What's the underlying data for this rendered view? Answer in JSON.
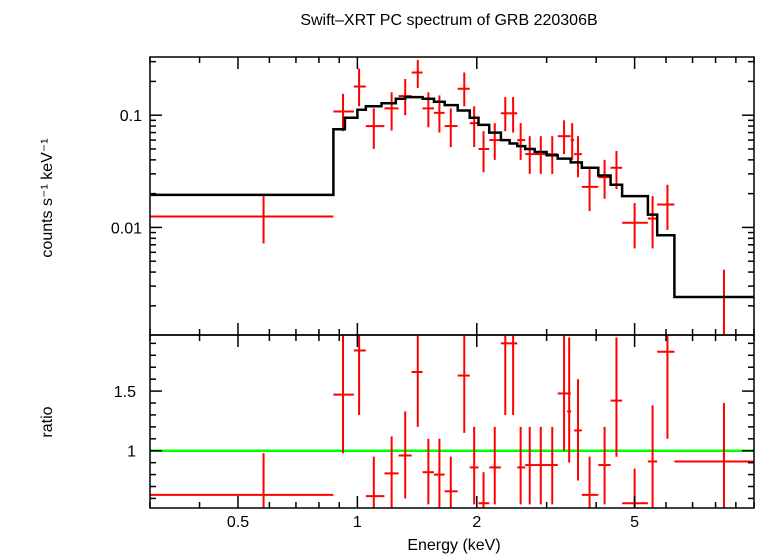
{
  "chart_data": {
    "type": "scatter",
    "title": "Swift–XRT PC spectrum of GRB 220306B",
    "xlabel": "Energy (keV)",
    "x_scale": "log",
    "xlim": [
      0.3,
      10
    ],
    "colors": {
      "data": "#ff0000",
      "model": "#000000",
      "unity": "#00ff00"
    },
    "top_panel": {
      "ylabel": "counts s⁻¹ keV⁻¹",
      "y_scale": "log",
      "ylim": [
        0.0011,
        0.33
      ],
      "yticks": [
        {
          "value": 0.01,
          "label": "0.01"
        },
        {
          "value": 0.1,
          "label": "0.1"
        }
      ],
      "data_points": [
        {
          "x": 0.58,
          "xlo": 0.3,
          "xhi": 0.87,
          "y": 0.0125,
          "ylo": 0.0072,
          "yhi": 0.019
        },
        {
          "x": 0.92,
          "xlo": 0.87,
          "xhi": 0.98,
          "y": 0.108,
          "ylo": 0.072,
          "yhi": 0.155
        },
        {
          "x": 1.01,
          "xlo": 0.98,
          "xhi": 1.05,
          "y": 0.18,
          "ylo": 0.12,
          "yhi": 0.26
        },
        {
          "x": 1.1,
          "xlo": 1.05,
          "xhi": 1.17,
          "y": 0.08,
          "ylo": 0.05,
          "yhi": 0.115
        },
        {
          "x": 1.22,
          "xlo": 1.17,
          "xhi": 1.27,
          "y": 0.115,
          "ylo": 0.073,
          "yhi": 0.16
        },
        {
          "x": 1.32,
          "xlo": 1.27,
          "xhi": 1.37,
          "y": 0.148,
          "ylo": 0.1,
          "yhi": 0.21
        },
        {
          "x": 1.42,
          "xlo": 1.37,
          "xhi": 1.46,
          "y": 0.24,
          "ylo": 0.175,
          "yhi": 0.31
        },
        {
          "x": 1.51,
          "xlo": 1.46,
          "xhi": 1.56,
          "y": 0.115,
          "ylo": 0.078,
          "yhi": 0.16
        },
        {
          "x": 1.61,
          "xlo": 1.56,
          "xhi": 1.66,
          "y": 0.105,
          "ylo": 0.07,
          "yhi": 0.15
        },
        {
          "x": 1.72,
          "xlo": 1.66,
          "xhi": 1.79,
          "y": 0.08,
          "ylo": 0.052,
          "yhi": 0.115
        },
        {
          "x": 1.86,
          "xlo": 1.79,
          "xhi": 1.92,
          "y": 0.172,
          "ylo": 0.12,
          "yhi": 0.24
        },
        {
          "x": 1.97,
          "xlo": 1.92,
          "xhi": 2.02,
          "y": 0.085,
          "ylo": 0.052,
          "yhi": 0.12
        },
        {
          "x": 2.08,
          "xlo": 2.02,
          "xhi": 2.15,
          "y": 0.05,
          "ylo": 0.031,
          "yhi": 0.072
        },
        {
          "x": 2.22,
          "xlo": 2.15,
          "xhi": 2.3,
          "y": 0.06,
          "ylo": 0.04,
          "yhi": 0.085
        },
        {
          "x": 2.36,
          "xlo": 2.3,
          "xhi": 2.42,
          "y": 0.104,
          "ylo": 0.072,
          "yhi": 0.145
        },
        {
          "x": 2.47,
          "xlo": 2.42,
          "xhi": 2.53,
          "y": 0.104,
          "ylo": 0.07,
          "yhi": 0.145
        },
        {
          "x": 2.58,
          "xlo": 2.53,
          "xhi": 2.65,
          "y": 0.06,
          "ylo": 0.04,
          "yhi": 0.085
        },
        {
          "x": 2.72,
          "xlo": 2.65,
          "xhi": 2.8,
          "y": 0.045,
          "ylo": 0.03,
          "yhi": 0.065
        },
        {
          "x": 2.9,
          "xlo": 2.8,
          "xhi": 3.0,
          "y": 0.045,
          "ylo": 0.03,
          "yhi": 0.065
        },
        {
          "x": 3.1,
          "xlo": 3.0,
          "xhi": 3.2,
          "y": 0.045,
          "ylo": 0.03,
          "yhi": 0.065
        },
        {
          "x": 3.32,
          "xlo": 3.2,
          "xhi": 3.45,
          "y": 0.065,
          "ylo": 0.045,
          "yhi": 0.09
        },
        {
          "x": 3.48,
          "xlo": 3.45,
          "xhi": 3.52,
          "y": 0.06,
          "ylo": 0.04,
          "yhi": 0.085
        },
        {
          "x": 3.6,
          "xlo": 3.52,
          "xhi": 3.68,
          "y": 0.045,
          "ylo": 0.028,
          "yhi": 0.065
        },
        {
          "x": 3.85,
          "xlo": 3.68,
          "xhi": 4.05,
          "y": 0.023,
          "ylo": 0.014,
          "yhi": 0.035
        },
        {
          "x": 4.2,
          "xlo": 4.05,
          "xhi": 4.35,
          "y": 0.028,
          "ylo": 0.018,
          "yhi": 0.04
        },
        {
          "x": 4.5,
          "xlo": 4.35,
          "xhi": 4.65,
          "y": 0.034,
          "ylo": 0.022,
          "yhi": 0.048
        },
        {
          "x": 5.0,
          "xlo": 4.65,
          "xhi": 5.4,
          "y": 0.011,
          "ylo": 0.0065,
          "yhi": 0.0165
        },
        {
          "x": 5.55,
          "xlo": 5.4,
          "xhi": 5.7,
          "y": 0.012,
          "ylo": 0.0065,
          "yhi": 0.019
        },
        {
          "x": 6.05,
          "xlo": 5.7,
          "xhi": 6.3,
          "y": 0.016,
          "ylo": 0.0095,
          "yhi": 0.024
        },
        {
          "x": 8.4,
          "xlo": 6.3,
          "xhi": 10.0,
          "y": 0.0024,
          "ylo": 0.0011,
          "yhi": 0.0042
        }
      ],
      "model_steps": [
        {
          "x0": 0.3,
          "x1": 0.87,
          "y": 0.0195
        },
        {
          "x0": 0.87,
          "x1": 0.93,
          "y": 0.075
        },
        {
          "x0": 0.93,
          "x1": 1.0,
          "y": 0.095
        },
        {
          "x0": 1.0,
          "x1": 1.05,
          "y": 0.112
        },
        {
          "x0": 1.05,
          "x1": 1.15,
          "y": 0.12
        },
        {
          "x0": 1.15,
          "x1": 1.25,
          "y": 0.128
        },
        {
          "x0": 1.25,
          "x1": 1.32,
          "y": 0.14
        },
        {
          "x0": 1.32,
          "x1": 1.46,
          "y": 0.145
        },
        {
          "x0": 1.46,
          "x1": 1.56,
          "y": 0.14
        },
        {
          "x0": 1.56,
          "x1": 1.66,
          "y": 0.132
        },
        {
          "x0": 1.66,
          "x1": 1.79,
          "y": 0.123
        },
        {
          "x0": 1.79,
          "x1": 1.92,
          "y": 0.11
        },
        {
          "x0": 1.92,
          "x1": 2.02,
          "y": 0.095
        },
        {
          "x0": 2.02,
          "x1": 2.15,
          "y": 0.082
        },
        {
          "x0": 2.15,
          "x1": 2.3,
          "y": 0.07
        },
        {
          "x0": 2.3,
          "x1": 2.42,
          "y": 0.06
        },
        {
          "x0": 2.42,
          "x1": 2.53,
          "y": 0.056
        },
        {
          "x0": 2.53,
          "x1": 2.65,
          "y": 0.053
        },
        {
          "x0": 2.65,
          "x1": 2.8,
          "y": 0.05
        },
        {
          "x0": 2.8,
          "x1": 3.0,
          "y": 0.047
        },
        {
          "x0": 3.0,
          "x1": 3.2,
          "y": 0.044
        },
        {
          "x0": 3.2,
          "x1": 3.45,
          "y": 0.041
        },
        {
          "x0": 3.45,
          "x1": 3.68,
          "y": 0.038
        },
        {
          "x0": 3.68,
          "x1": 4.05,
          "y": 0.034
        },
        {
          "x0": 4.05,
          "x1": 4.35,
          "y": 0.029
        },
        {
          "x0": 4.35,
          "x1": 4.65,
          "y": 0.024
        },
        {
          "x0": 4.65,
          "x1": 5.4,
          "y": 0.019
        },
        {
          "x0": 5.4,
          "x1": 5.7,
          "y": 0.013
        },
        {
          "x0": 5.7,
          "x1": 6.3,
          "y": 0.0085
        },
        {
          "x0": 6.3,
          "x1": 10.0,
          "y": 0.0024
        }
      ]
    },
    "bottom_panel": {
      "ylabel": "ratio",
      "y_scale": "linear",
      "ylim": [
        0.52,
        1.97
      ],
      "yticks": [
        {
          "value": 1,
          "label": "1"
        },
        {
          "value": 1.5,
          "label": "1.5"
        }
      ],
      "reference_line": 1,
      "data_points": [
        {
          "x": 0.58,
          "xlo": 0.3,
          "xhi": 0.87,
          "y": 0.63,
          "ylo": 0.38,
          "yhi": 0.98
        },
        {
          "x": 0.92,
          "xlo": 0.87,
          "xhi": 0.98,
          "y": 1.47,
          "ylo": 0.98,
          "yhi": 2.0
        },
        {
          "x": 1.01,
          "xlo": 0.98,
          "xhi": 1.05,
          "y": 1.84,
          "ylo": 1.3,
          "yhi": 2.2
        },
        {
          "x": 1.1,
          "xlo": 1.05,
          "xhi": 1.17,
          "y": 0.62,
          "ylo": 0.4,
          "yhi": 0.95
        },
        {
          "x": 1.22,
          "xlo": 1.17,
          "xhi": 1.27,
          "y": 0.81,
          "ylo": 0.52,
          "yhi": 1.12
        },
        {
          "x": 1.32,
          "xlo": 1.27,
          "xhi": 1.37,
          "y": 0.96,
          "ylo": 0.6,
          "yhi": 1.33
        },
        {
          "x": 1.42,
          "xlo": 1.37,
          "xhi": 1.46,
          "y": 1.66,
          "ylo": 1.2,
          "yhi": 2.15
        },
        {
          "x": 1.51,
          "xlo": 1.46,
          "xhi": 1.56,
          "y": 0.82,
          "ylo": 0.55,
          "yhi": 1.1
        },
        {
          "x": 1.61,
          "xlo": 1.56,
          "xhi": 1.66,
          "y": 0.8,
          "ylo": 0.5,
          "yhi": 1.1
        },
        {
          "x": 1.72,
          "xlo": 1.66,
          "xhi": 1.79,
          "y": 0.66,
          "ylo": 0.42,
          "yhi": 0.95
        },
        {
          "x": 1.86,
          "xlo": 1.79,
          "xhi": 1.92,
          "y": 1.63,
          "ylo": 1.15,
          "yhi": 2.15
        },
        {
          "x": 1.97,
          "xlo": 1.92,
          "xhi": 2.02,
          "y": 0.86,
          "ylo": 0.55,
          "yhi": 1.2
        },
        {
          "x": 2.08,
          "xlo": 2.02,
          "xhi": 2.15,
          "y": 0.56,
          "ylo": 0.35,
          "yhi": 0.82
        },
        {
          "x": 2.22,
          "xlo": 2.15,
          "xhi": 2.3,
          "y": 0.86,
          "ylo": 0.55,
          "yhi": 1.2
        },
        {
          "x": 2.36,
          "xlo": 2.3,
          "xhi": 2.42,
          "y": 1.9,
          "ylo": 1.3,
          "yhi": 2.3
        },
        {
          "x": 2.47,
          "xlo": 2.42,
          "xhi": 2.53,
          "y": 1.9,
          "ylo": 1.3,
          "yhi": 2.3
        },
        {
          "x": 2.58,
          "xlo": 2.53,
          "xhi": 2.65,
          "y": 0.86,
          "ylo": 0.55,
          "yhi": 1.2
        },
        {
          "x": 2.72,
          "xlo": 2.65,
          "xhi": 2.8,
          "y": 0.88,
          "ylo": 0.55,
          "yhi": 1.2
        },
        {
          "x": 2.9,
          "xlo": 2.8,
          "xhi": 3.0,
          "y": 0.88,
          "ylo": 0.55,
          "yhi": 1.2
        },
        {
          "x": 3.1,
          "xlo": 3.0,
          "xhi": 3.2,
          "y": 0.88,
          "ylo": 0.55,
          "yhi": 1.2
        },
        {
          "x": 3.32,
          "xlo": 3.2,
          "xhi": 3.45,
          "y": 1.48,
          "ylo": 1.0,
          "yhi": 2.0
        },
        {
          "x": 3.42,
          "xlo": 3.38,
          "xhi": 3.46,
          "y": 1.33,
          "ylo": 0.9,
          "yhi": 1.95
        },
        {
          "x": 3.6,
          "xlo": 3.52,
          "xhi": 3.68,
          "y": 1.17,
          "ylo": 0.75,
          "yhi": 1.6
        },
        {
          "x": 3.85,
          "xlo": 3.68,
          "xhi": 4.05,
          "y": 0.63,
          "ylo": 0.4,
          "yhi": 0.95
        },
        {
          "x": 4.2,
          "xlo": 4.05,
          "xhi": 4.35,
          "y": 0.88,
          "ylo": 0.55,
          "yhi": 1.2
        },
        {
          "x": 4.5,
          "xlo": 4.35,
          "xhi": 4.65,
          "y": 1.42,
          "ylo": 0.95,
          "yhi": 1.95
        },
        {
          "x": 5.0,
          "xlo": 4.65,
          "xhi": 5.4,
          "y": 0.56,
          "ylo": 0.35,
          "yhi": 0.85
        },
        {
          "x": 5.55,
          "xlo": 5.4,
          "xhi": 5.7,
          "y": 0.91,
          "ylo": 0.5,
          "yhi": 1.38
        },
        {
          "x": 6.05,
          "xlo": 5.7,
          "xhi": 6.3,
          "y": 1.83,
          "ylo": 1.1,
          "yhi": 2.2
        },
        {
          "x": 8.4,
          "xlo": 6.3,
          "xhi": 10.0,
          "y": 0.91,
          "ylo": 0.42,
          "yhi": 1.4
        }
      ]
    },
    "xticks": [
      {
        "value": 0.5,
        "label": "0.5"
      },
      {
        "value": 1,
        "label": "1"
      },
      {
        "value": 2,
        "label": "2"
      },
      {
        "value": 5,
        "label": "5"
      }
    ]
  }
}
